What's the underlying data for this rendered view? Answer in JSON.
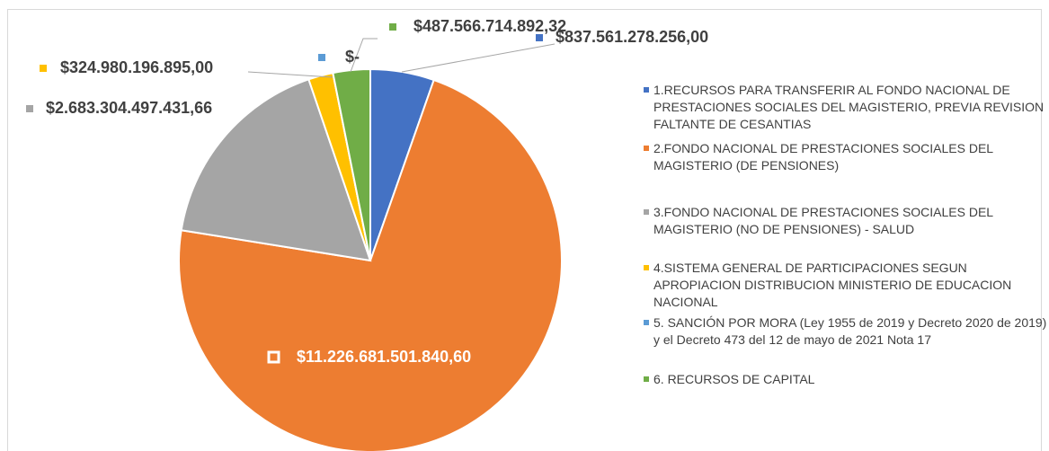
{
  "chart_data": {
    "type": "pie",
    "categories": [
      "1.RECURSOS PARA TRANSFERIR AL FONDO NACIONAL DE PRESTACIONES SOCIALES DEL MAGISTERIO, PREVIA REVISION FALTANTE DE CESANTIAS",
      "2.FONDO NACIONAL DE PRESTACIONES SOCIALES DEL MAGISTERIO (DE PENSIONES)",
      "3.FONDO NACIONAL DE PRESTACIONES SOCIALES DEL MAGISTERIO (NO DE PENSIONES) - SALUD",
      "4.SISTEMA GENERAL DE PARTICIPACIONES SEGUN APROPIACION DISTRIBUCION MINISTERIO DE EDUCACION NACIONAL",
      "5. SANCIÓN POR MORA (Ley 1955 de 2019 y Decreto 2020 de 2019) y  el Decreto 473 del 12 de mayo de 2021 Nota 17",
      "6. RECURSOS DE CAPITAL"
    ],
    "values": [
      837561278256.0,
      11226681501840.6,
      2683304497431.66,
      324980196895.0,
      0,
      487566714892.32
    ],
    "value_labels": [
      "$837.561.278.256,00",
      "$11.226.681.501.840,60",
      "$2.683.304.497.431,66",
      "$324.980.196.895,00",
      "$-",
      "$487.566.714.892,32"
    ],
    "colors": [
      "#4472c4",
      "#ed7d31",
      "#a5a5a5",
      "#ffc000",
      "#5b9bd5",
      "#70ad47"
    ]
  }
}
